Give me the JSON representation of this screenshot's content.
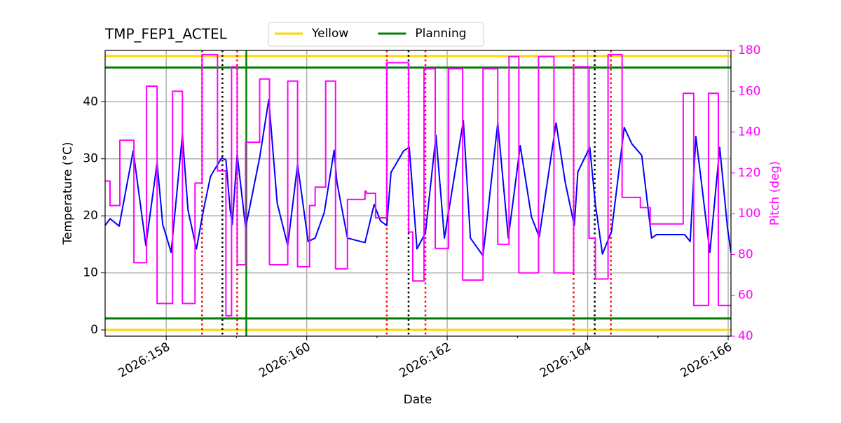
{
  "chart_data": {
    "type": "line",
    "title": "TMP_FEP1_ACTEL",
    "xlabel": "Date",
    "ylabel": "Temperature (°C)",
    "y2label": "Pitch (deg)",
    "y2color": "#ff00ff",
    "xlim": [
      157.13,
      166.04
    ],
    "ylim": [
      -1.1,
      49
    ],
    "y2lim": [
      40,
      180
    ],
    "xticks": [
      {
        "value": 158,
        "label": "2026:158"
      },
      {
        "value": 160,
        "label": "2026:160"
      },
      {
        "value": 162,
        "label": "2026:162"
      },
      {
        "value": 164,
        "label": "2026:164"
      },
      {
        "value": 166,
        "label": "2026:166"
      }
    ],
    "xminorticks": [
      159,
      161,
      163,
      165
    ],
    "yticks": [
      0,
      10,
      20,
      30,
      40
    ],
    "y2ticks": [
      40,
      60,
      80,
      100,
      120,
      140,
      160,
      180
    ],
    "grid": true,
    "legend": "top",
    "series": [
      {
        "color": "#0000ff",
        "x": [
          157.13,
          157.2,
          157.33,
          157.53,
          157.71,
          157.87,
          157.95,
          158.07,
          158.23,
          158.31,
          158.43,
          158.53,
          158.63,
          158.79,
          158.85,
          158.91,
          158.94,
          159.01,
          159.13,
          159.33,
          159.46,
          159.58,
          159.73,
          159.87,
          160.02,
          160.12,
          160.25,
          160.39,
          160.43,
          160.58,
          160.83,
          160.96,
          161.05,
          161.14,
          161.2,
          161.38,
          161.46,
          161.57,
          161.69,
          161.84,
          161.96,
          162.23,
          162.33,
          162.51,
          162.72,
          162.87,
          163.04,
          163.2,
          163.31,
          163.55,
          163.68,
          163.81,
          163.86,
          164.03,
          164.11,
          164.21,
          164.34,
          164.52,
          164.63,
          164.77,
          164.91,
          164.98,
          165.38,
          165.46,
          165.54,
          165.74,
          165.88,
          165.99,
          166.04
        ],
        "values": [
          18.3,
          19.5,
          18.2,
          31.4,
          14.8,
          29.3,
          18.5,
          13.6,
          34.2,
          21,
          14.2,
          21,
          26.9,
          30.2,
          29.8,
          21,
          18.5,
          30.8,
          17.9,
          30.2,
          40.4,
          22.2,
          14.8,
          29,
          15.5,
          16.1,
          20.6,
          31.5,
          25.9,
          16.1,
          15.3,
          22,
          19.1,
          18.3,
          27.6,
          31.4,
          32,
          14.2,
          17,
          34.1,
          16.1,
          36.7,
          16.1,
          13,
          36.3,
          16.1,
          32.3,
          19.8,
          16.3,
          36.3,
          25.9,
          18.3,
          27.7,
          32,
          22,
          13.3,
          17.3,
          35.5,
          32.6,
          30.6,
          16.1,
          16.7,
          16.7,
          15.5,
          33.9,
          13.6,
          32,
          17.9,
          13.6
        ]
      },
      {
        "color": "#ff00ff",
        "axis": "y2",
        "x": [
          157.13,
          157.2,
          157.2,
          157.34,
          157.34,
          157.54,
          157.54,
          157.72,
          157.72,
          157.87,
          157.87,
          158.09,
          158.09,
          158.23,
          158.23,
          158.41,
          158.41,
          158.51,
          158.51,
          158.73,
          158.73,
          158.85,
          158.85,
          158.93,
          158.93,
          159.01,
          159.01,
          159.13,
          159.13,
          159.33,
          159.33,
          159.47,
          159.47,
          159.73,
          159.73,
          159.87,
          159.87,
          160.04,
          160.04,
          160.12,
          160.12,
          160.27,
          160.27,
          160.41,
          160.41,
          160.58,
          160.58,
          160.83,
          160.83,
          160.85,
          160.85,
          160.98,
          160.98,
          161.14,
          161.14,
          161.45,
          161.45,
          161.51,
          161.51,
          161.67,
          161.67,
          161.83,
          161.83,
          162.02,
          162.02,
          162.22,
          162.22,
          162.51,
          162.51,
          162.72,
          162.72,
          162.88,
          162.88,
          163.02,
          163.02,
          163.3,
          163.3,
          163.52,
          163.52,
          163.8,
          163.8,
          164.02,
          164.02,
          164.11,
          164.11,
          164.29,
          164.29,
          164.49,
          164.49,
          164.75,
          164.75,
          164.89,
          164.89,
          165.36,
          165.36,
          165.51,
          165.51,
          165.72,
          165.72,
          165.86,
          165.86,
          166.04
        ],
        "values": [
          116,
          116,
          104,
          104,
          136,
          136,
          76,
          76,
          162.5,
          162.5,
          56,
          56,
          160,
          160,
          56,
          56,
          115,
          115,
          178,
          178,
          121,
          121,
          50,
          50,
          172,
          172,
          75,
          75,
          135,
          135,
          166,
          166,
          75,
          75,
          165,
          165,
          74,
          74,
          104,
          104,
          113,
          113,
          165,
          165,
          73,
          73,
          107,
          107,
          111,
          111,
          110,
          110,
          98,
          98,
          174,
          174,
          91,
          91,
          67,
          67,
          171,
          171,
          83,
          83,
          171,
          171,
          67.5,
          67.5,
          171,
          171,
          85,
          85,
          177,
          177,
          71,
          71,
          177,
          177,
          71,
          71,
          172,
          172,
          88,
          88,
          68,
          68,
          178,
          178,
          108,
          108,
          103,
          103,
          95,
          95,
          159,
          159,
          55,
          55,
          159,
          159,
          55,
          55
        ]
      }
    ],
    "limit_lines": [
      {
        "name": "Yellow",
        "color": "#ffd700",
        "values": [
          48,
          0
        ]
      },
      {
        "name": "Planning",
        "color": "#008000",
        "values": [
          46,
          2
        ]
      }
    ],
    "vlines": [
      {
        "color": "#ff0000",
        "style": "dotted",
        "x": [
          158.51,
          159.01,
          161.14,
          161.69,
          163.8,
          164.33
        ]
      },
      {
        "color": "#000000",
        "style": "dotted",
        "x": [
          158.8,
          161.45,
          164.1
        ]
      },
      {
        "color": "#008000",
        "style": "solid",
        "x": [
          159.14
        ]
      }
    ]
  }
}
